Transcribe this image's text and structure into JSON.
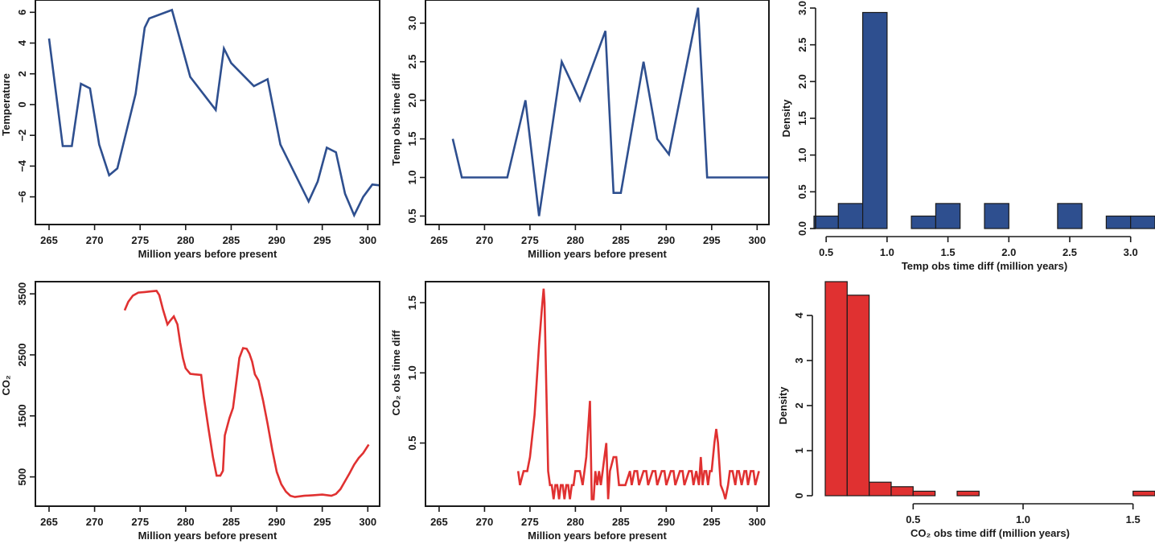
{
  "colors": {
    "blue": "#2e4f8f",
    "red": "#e03131",
    "axis": "#1a1a1a"
  },
  "chart_data": [
    {
      "id": "temperature",
      "type": "line",
      "title": "",
      "xlabel": "Million years before present",
      "ylabel": "Temperature",
      "xlim": [
        263.5,
        301.3
      ],
      "ylim": [
        -7.8,
        6.8
      ],
      "xticks": [
        265,
        270,
        275,
        280,
        285,
        290,
        295,
        300
      ],
      "yticks": [
        -6,
        -4,
        -2,
        0,
        2,
        4,
        6
      ],
      "color": "#2e4f8f",
      "x": [
        265.0,
        266.5,
        267.5,
        268.5,
        269.5,
        270.5,
        271.6,
        272.5,
        274.5,
        275.5,
        276.0,
        278.5,
        280.5,
        283.3,
        284.2,
        285.0,
        287.5,
        289.0,
        290.4,
        293.5,
        294.5,
        295.5,
        296.5,
        297.5,
        298.5,
        299.5,
        300.5,
        301.3
      ],
      "y": [
        4.3,
        -2.7,
        -2.7,
        1.35,
        1.05,
        -2.6,
        -4.6,
        -4.15,
        0.7,
        5.0,
        5.6,
        6.15,
        1.8,
        -0.35,
        3.65,
        2.7,
        1.2,
        1.65,
        -2.6,
        -6.3,
        -5.0,
        -2.8,
        -3.1,
        -5.8,
        -7.2,
        -6.0,
        -5.2,
        -5.25
      ]
    },
    {
      "id": "temp-obs-time-diff",
      "type": "line",
      "title": "",
      "xlabel": "Million years before present",
      "ylabel": "Temp obs time diff",
      "xlim": [
        263.5,
        301.3
      ],
      "ylim": [
        0.39,
        3.3
      ],
      "xticks": [
        265,
        270,
        275,
        280,
        285,
        290,
        295,
        300
      ],
      "yticks": [
        0.5,
        1.0,
        1.5,
        2.0,
        2.5,
        3.0
      ],
      "ytick_labels": [
        "0.5",
        "1.0",
        "1.5",
        "2.0",
        "2.5",
        "3.0"
      ],
      "color": "#2e4f8f",
      "x": [
        266.5,
        267.5,
        272.5,
        274.5,
        276.0,
        278.5,
        280.5,
        283.3,
        284.2,
        285.0,
        287.5,
        289.0,
        290.3,
        293.5,
        294.5,
        301.3
      ],
      "y": [
        1.5,
        1.0,
        1.0,
        2.0,
        0.5,
        2.5,
        2.0,
        2.9,
        0.8,
        0.8,
        2.5,
        1.5,
        1.3,
        3.2,
        1.0,
        1.0
      ]
    },
    {
      "id": "temp-diff-histogram",
      "type": "bar",
      "title": "",
      "xlabel": "Temp obs time diff (million years)",
      "ylabel": "Density",
      "xlim": [
        0.4,
        3.2
      ],
      "ylim": [
        0,
        3.0
      ],
      "xticks": [
        0.5,
        1.0,
        1.5,
        2.0,
        2.5,
        3.0
      ],
      "xtick_labels": [
        "0.5",
        "1.0",
        "1.5",
        "2.0",
        "2.5",
        "3.0"
      ],
      "yticks": [
        0.0,
        0.5,
        1.0,
        1.5,
        2.0,
        2.5,
        3.0
      ],
      "ytick_labels": [
        "0.0",
        "0.5",
        "1.0",
        "1.5",
        "2.0",
        "2.5",
        "3.0"
      ],
      "color": "#2e4f8f",
      "bin_edges": [
        0.4,
        0.6,
        0.8,
        1.0,
        1.2,
        1.4,
        1.6,
        1.8,
        2.0,
        2.2,
        2.4,
        2.6,
        2.8,
        3.0,
        3.2
      ],
      "values": [
        0.17,
        0.34,
        2.94,
        0.0,
        0.17,
        0.34,
        0.0,
        0.34,
        0.0,
        0.0,
        0.34,
        0.0,
        0.17,
        0.17
      ]
    },
    {
      "id": "co2",
      "type": "line",
      "title": "",
      "xlabel": "Million years before present",
      "ylabel": "CO₂",
      "xlim": [
        263.5,
        301.3
      ],
      "ylim": [
        20,
        3700
      ],
      "xticks": [
        265,
        270,
        275,
        280,
        285,
        290,
        295,
        300
      ],
      "yticks": [
        500,
        1500,
        2500,
        3500
      ],
      "color": "#e03131",
      "x": [
        273.3,
        273.7,
        274.2,
        274.8,
        275.5,
        276.2,
        276.8,
        277.1,
        277.5,
        278.0,
        278.3,
        278.7,
        279.1,
        279.4,
        279.7,
        280.0,
        280.5,
        281.0,
        281.7,
        282.0,
        282.5,
        283.0,
        283.4,
        283.8,
        284.1,
        284.3,
        284.8,
        285.2,
        285.5,
        285.9,
        286.3,
        286.7,
        287.0,
        287.3,
        287.6,
        288.0,
        288.5,
        289.0,
        289.5,
        290.0,
        290.5,
        291.0,
        291.5,
        292.0,
        293.0,
        294.0,
        295.0,
        296.0,
        296.5,
        297.0,
        297.5,
        298.0,
        298.5,
        299.0,
        299.5,
        300.1
      ],
      "y": [
        3230,
        3370,
        3470,
        3520,
        3530,
        3540,
        3550,
        3480,
        3250,
        3000,
        3060,
        3130,
        3000,
        2700,
        2450,
        2280,
        2190,
        2180,
        2170,
        1800,
        1300,
        820,
        520,
        520,
        600,
        1180,
        1460,
        1630,
        1980,
        2450,
        2610,
        2600,
        2520,
        2390,
        2180,
        2080,
        1750,
        1370,
        950,
        580,
        380,
        260,
        190,
        170,
        190,
        200,
        210,
        190,
        220,
        300,
        430,
        560,
        700,
        810,
        890,
        1030
      ]
    },
    {
      "id": "co2-obs-time-diff",
      "type": "line",
      "title": "",
      "xlabel": "Million years before present",
      "ylabel": "CO₂ obs time diff",
      "xlim": [
        263.5,
        301.3
      ],
      "ylim": [
        0.05,
        1.65
      ],
      "xticks": [
        265,
        270,
        275,
        280,
        285,
        290,
        295,
        300
      ],
      "yticks": [
        0.5,
        1.0,
        1.5
      ],
      "ytick_labels": [
        "0.5",
        "1.0",
        "1.5"
      ],
      "color": "#e03131",
      "x": [
        273.7,
        273.9,
        274.1,
        274.3,
        274.7,
        275.0,
        275.5,
        276.0,
        276.3,
        276.5,
        276.6,
        276.8,
        277.0,
        277.2,
        277.4,
        277.6,
        277.8,
        278.0,
        278.2,
        278.4,
        278.6,
        278.8,
        279.0,
        279.2,
        279.4,
        279.6,
        279.8,
        280.0,
        280.5,
        280.8,
        281.2,
        281.6,
        281.8,
        282.0,
        282.2,
        282.4,
        282.6,
        282.8,
        283.0,
        283.2,
        283.4,
        283.6,
        283.8,
        284.0,
        284.2,
        284.5,
        284.8,
        285.0,
        285.2,
        285.5,
        286.0,
        286.2,
        286.5,
        286.8,
        287.0,
        287.5,
        287.8,
        288.0,
        288.5,
        288.8,
        289.0,
        289.5,
        289.8,
        290.0,
        290.5,
        290.8,
        291.0,
        291.5,
        291.8,
        292.0,
        292.5,
        292.8,
        293.0,
        293.3,
        293.6,
        293.8,
        294.0,
        294.2,
        294.4,
        294.6,
        294.8,
        295.0,
        295.3,
        295.5,
        295.7,
        296.0,
        296.3,
        296.5,
        296.8,
        297.0,
        297.3,
        297.6,
        297.8,
        298.0,
        298.3,
        298.6,
        298.8,
        299.0,
        299.3,
        299.6,
        299.8,
        300.2
      ],
      "y": [
        0.3,
        0.2,
        0.25,
        0.3,
        0.3,
        0.4,
        0.7,
        1.2,
        1.45,
        1.6,
        1.5,
        0.9,
        0.3,
        0.2,
        0.2,
        0.1,
        0.2,
        0.2,
        0.1,
        0.2,
        0.2,
        0.1,
        0.2,
        0.2,
        0.1,
        0.2,
        0.2,
        0.3,
        0.3,
        0.2,
        0.4,
        0.8,
        0.1,
        0.1,
        0.3,
        0.2,
        0.3,
        0.2,
        0.3,
        0.4,
        0.5,
        0.1,
        0.3,
        0.35,
        0.4,
        0.4,
        0.2,
        0.2,
        0.2,
        0.2,
        0.3,
        0.2,
        0.3,
        0.3,
        0.2,
        0.3,
        0.3,
        0.2,
        0.3,
        0.3,
        0.2,
        0.3,
        0.3,
        0.2,
        0.3,
        0.3,
        0.2,
        0.3,
        0.3,
        0.2,
        0.3,
        0.3,
        0.2,
        0.3,
        0.2,
        0.4,
        0.2,
        0.3,
        0.3,
        0.2,
        0.3,
        0.3,
        0.5,
        0.6,
        0.5,
        0.2,
        0.15,
        0.1,
        0.2,
        0.3,
        0.3,
        0.2,
        0.3,
        0.3,
        0.2,
        0.3,
        0.3,
        0.2,
        0.3,
        0.3,
        0.2,
        0.3
      ]
    },
    {
      "id": "co2-diff-histogram",
      "type": "bar",
      "title": "",
      "xlabel": "CO₂ obs time diff (million years)",
      "ylabel": "Density",
      "xlim": [
        0.1,
        1.6
      ],
      "ylim": [
        0,
        4.75
      ],
      "xticks": [
        0.5,
        1.0,
        1.5
      ],
      "xtick_labels": [
        "0.5",
        "1.0",
        "1.5"
      ],
      "yticks": [
        0,
        1,
        2,
        3,
        4
      ],
      "ytick_labels": [
        "0",
        "1",
        "2",
        "3",
        "4"
      ],
      "color": "#e03131",
      "bin_edges": [
        0.1,
        0.2,
        0.3,
        0.4,
        0.5,
        0.6,
        0.7,
        0.8,
        0.9,
        1.0,
        1.1,
        1.2,
        1.3,
        1.4,
        1.5,
        1.6
      ],
      "values": [
        4.75,
        4.45,
        0.3,
        0.2,
        0.1,
        0.0,
        0.1,
        0.0,
        0.0,
        0.0,
        0.0,
        0.0,
        0.0,
        0.0,
        0.1
      ]
    }
  ],
  "layout": {
    "panels": [
      {
        "id": "temperature",
        "plot": [
          44,
          0,
          472,
          279
        ],
        "frame": true,
        "xaxis_y": 279,
        "yaxis_x": 44
      },
      {
        "id": "temp-obs-time-diff",
        "plot": [
          529,
          0,
          956,
          279
        ],
        "frame": true,
        "xaxis_y": 279,
        "yaxis_x": 529
      },
      {
        "id": "temp-diff-histogram",
        "plot": [
          1012,
          10,
          1436,
          284
        ],
        "frame": false,
        "xaxis_y": 294,
        "yaxis_x": 1014
      },
      {
        "id": "co2",
        "plot": [
          44,
          350,
          472,
          629
        ],
        "frame": true,
        "xaxis_y": 629,
        "yaxis_x": 44
      },
      {
        "id": "co2-obs-time-diff",
        "plot": [
          529,
          350,
          956,
          629
        ],
        "frame": true,
        "xaxis_y": 629,
        "yaxis_x": 529
      },
      {
        "id": "co2-diff-histogram",
        "plot": [
          1026,
          350,
          1436,
          616
        ],
        "frame": false,
        "xaxis_y": 626,
        "yaxis_x": 1010
      }
    ]
  }
}
